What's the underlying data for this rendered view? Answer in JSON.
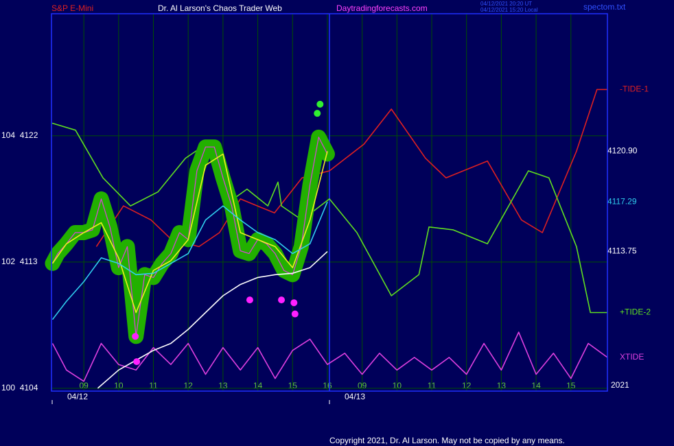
{
  "header": {
    "symbol": "S&P E-Mini",
    "site_title": "Dr. Al Larson's Chaos Trader Web",
    "url": "Daytradingforecasts.com",
    "timestamp_ut": "04/12/2021 20:20 UT",
    "timestamp_local": "04/12/2021 15:20 Local",
    "file": "spectom.txt"
  },
  "chart_data": {
    "type": "line",
    "xlim": [
      -0.93,
      15.05
    ],
    "ylim": [
      4103.8,
      4130.7
    ],
    "xticks": [
      {
        "value": 0,
        "label": "09"
      },
      {
        "value": 1,
        "label": "10"
      },
      {
        "value": 2,
        "label": "11"
      },
      {
        "value": 3,
        "label": "12"
      },
      {
        "value": 4,
        "label": "13"
      },
      {
        "value": 5,
        "label": "14"
      },
      {
        "value": 6,
        "label": "15"
      },
      {
        "value": 7,
        "label": "16"
      },
      {
        "value": 8,
        "label": "09"
      },
      {
        "value": 9,
        "label": "10"
      },
      {
        "value": 10,
        "label": "11"
      },
      {
        "value": 11,
        "label": "12"
      },
      {
        "value": 12,
        "label": "13"
      },
      {
        "value": 13,
        "label": "14"
      },
      {
        "value": 14,
        "label": "15"
      }
    ],
    "yticks": [
      {
        "value": 4104,
        "label": "100  4104"
      },
      {
        "value": 4113,
        "label": "102  4113"
      },
      {
        "value": 4122,
        "label": "104  4122"
      }
    ],
    "date_labels": [
      {
        "value": -0.91,
        "label": "04/12"
      },
      {
        "value": 7.06,
        "label": "04/13"
      }
    ],
    "year_label": "2021",
    "grid": true,
    "series": [
      {
        "name": "-TIDE-1",
        "color": "#e02020",
        "x": [
          0.36,
          1.14,
          1.93,
          2.52,
          3.31,
          3.9,
          4.5,
          5.48,
          6.27,
          7.06,
          8.05,
          8.84,
          9.82,
          10.41,
          11.6,
          12.58,
          13.18,
          14.16,
          14.75,
          15.05
        ],
        "values": [
          4114.1,
          4117.0,
          4116.0,
          4114.6,
          4114.1,
          4115.1,
          4117.5,
          4116.5,
          4119.0,
          4119.5,
          4121.4,
          4123.9,
          4120.4,
          4119.0,
          4120.2,
          4116.0,
          4115.1,
          4120.9,
          4125.3,
          4125.3
        ]
      },
      {
        "name": "+TIDE-2",
        "color": "#60e020",
        "x": [
          -0.91,
          -0.24,
          0.55,
          1.34,
          2.13,
          2.92,
          3.51,
          4.3,
          4.69,
          5.29,
          5.58,
          5.68,
          6.27,
          7.06,
          7.85,
          8.84,
          9.63,
          9.92,
          10.61,
          11.6,
          12.78,
          13.37,
          14.16,
          14.56,
          15.05
        ],
        "values": [
          4122.9,
          4122.4,
          4119.0,
          4117.0,
          4118.0,
          4120.4,
          4121.4,
          4117.5,
          4118.2,
          4117.0,
          4118.7,
          4117.0,
          4116.0,
          4117.5,
          4115.1,
          4110.6,
          4112.1,
          4115.5,
          4115.3,
          4114.3,
          4119.5,
          4119.0,
          4114.1,
          4109.4,
          4109.4
        ]
      },
      {
        "name": "XTIDE",
        "color": "#e040e0",
        "x": [
          -0.9,
          -0.5,
          0,
          0.5,
          1,
          1.5,
          2,
          2.5,
          3,
          3.5,
          4,
          4.5,
          5,
          5.5,
          6,
          6.5,
          7,
          7.5,
          8,
          8.5,
          9,
          9.5,
          10,
          10.5,
          11,
          11.5,
          12,
          12.5,
          13,
          13.5,
          14,
          14.5,
          15.05
        ],
        "values": [
          4107.2,
          4105.3,
          4104.5,
          4107.2,
          4105.7,
          4105.3,
          4106.9,
          4105.7,
          4107.2,
          4105.0,
          4106.9,
          4105.3,
          4106.9,
          4104.7,
          4106.7,
          4107.5,
          4105.7,
          4106.5,
          4105.0,
          4106.5,
          4105.3,
          4106.2,
          4105.3,
          4106.2,
          4105.0,
          4107.2,
          4105.3,
          4108.0,
          4105.0,
          4106.5,
          4104.7,
          4107.2,
          4106.2
        ]
      },
      {
        "color": "#e040e0",
        "glow_color": "#22b000",
        "x": [
          -0.9,
          -0.75,
          -0.5,
          -0.25,
          0,
          0.25,
          0.5,
          0.75,
          1,
          1.25,
          1.5,
          1.75,
          2,
          2.25,
          2.5,
          2.75,
          3,
          3.25,
          3.5,
          3.75,
          4,
          4.25,
          4.5,
          4.75,
          5,
          5.25,
          5.5,
          5.75,
          6,
          6.25,
          6.5,
          6.75,
          7
        ],
        "values": [
          4112.9,
          4113.6,
          4114.3,
          4115.1,
          4115.1,
          4115.3,
          4117.5,
          4115.5,
          4112.6,
          4114.1,
          4107.7,
          4112.1,
          4111.9,
          4112.9,
          4113.6,
          4115.1,
          4114.6,
          4119.5,
          4121.2,
          4121.2,
          4119.0,
          4117.0,
          4113.8,
          4113.6,
          4114.6,
          4114.3,
          4113.6,
          4112.4,
          4112.1,
          4114.1,
          4118.5,
          4121.9,
          4120.7
        ]
      },
      {
        "color": "#f0f020",
        "end_label": "4120.90",
        "end_label_color": "#ffffff",
        "x": [
          -0.9,
          -0.5,
          0,
          0.5,
          1,
          1.5,
          2,
          2.5,
          3,
          3.5,
          4,
          4.5,
          5,
          5.5,
          6,
          6.5,
          7
        ],
        "values": [
          4112.9,
          4114.3,
          4115.1,
          4115.8,
          4113.3,
          4109.4,
          4112.4,
          4113.1,
          4114.6,
          4119.9,
          4120.7,
          4115.1,
          4114.6,
          4114.1,
          4112.6,
          4116.0,
          4120.9
        ]
      },
      {
        "color": "#30d0f0",
        "end_label": "4117.29",
        "end_label_color": "#30d0f0",
        "x": [
          -0.9,
          -0.5,
          0,
          0.5,
          1,
          1.5,
          2,
          2.5,
          3,
          3.5,
          4,
          4.5,
          5,
          5.5,
          6,
          6.5,
          7
        ],
        "values": [
          4108.9,
          4110.2,
          4111.6,
          4113.3,
          4112.9,
          4112.1,
          4112.2,
          4112.9,
          4113.6,
          4116.0,
          4117.0,
          4116.0,
          4115.1,
          4114.6,
          4113.6,
          4114.3,
          4117.29
        ]
      },
      {
        "color": "#ffffff",
        "end_label": "4113.75",
        "end_label_color": "#ffffff",
        "x": [
          0.4,
          1,
          1.5,
          2,
          2.5,
          3,
          3.5,
          4,
          4.5,
          5,
          5.5,
          6,
          6.5,
          7
        ],
        "values": [
          4104.0,
          4105.3,
          4106.0,
          4106.7,
          4107.2,
          4108.2,
          4109.4,
          4110.6,
          4111.4,
          4111.9,
          4112.1,
          4112.2,
          4112.6,
          4113.75
        ]
      }
    ],
    "markers": [
      {
        "color": "#30f030",
        "x": [
          6.79,
          6.71
        ],
        "values": [
          4124.25,
          4123.6
        ]
      },
      {
        "color": "#ff20ff",
        "x": [
          1.48,
          1.52,
          4.77,
          5.68,
          6.04,
          6.07
        ],
        "values": [
          4107.7,
          4105.9,
          4110.3,
          4110.3,
          4110.1,
          4109.3
        ]
      }
    ]
  },
  "footer": {
    "copyright": "Copyright 2021, Dr. Al Larson. May not be copied by any means."
  }
}
